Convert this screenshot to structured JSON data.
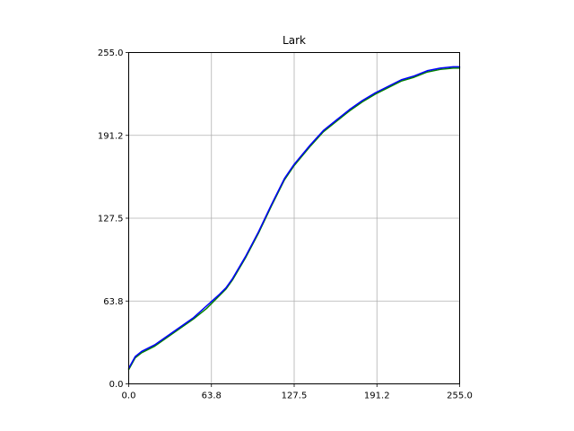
{
  "chart_data": {
    "type": "line",
    "title": "Lark",
    "xlabel": "",
    "ylabel": "",
    "xlim": [
      0,
      255
    ],
    "ylim": [
      0,
      255
    ],
    "x_ticks": [
      0,
      63.75,
      127.5,
      191.25,
      255
    ],
    "x_tick_labels": [
      "0.0",
      "63.8",
      "127.5",
      "191.2",
      "255.0"
    ],
    "y_ticks": [
      0,
      63.75,
      127.5,
      191.25,
      255
    ],
    "y_tick_labels": [
      "0.0",
      "63.8",
      "127.5",
      "191.2",
      "255.0"
    ],
    "grid": true,
    "legend": "none",
    "x": [
      0,
      5,
      10,
      20,
      30,
      40,
      50,
      60,
      70,
      75,
      80,
      90,
      100,
      110,
      120,
      127.5,
      140,
      150,
      160,
      170,
      180,
      190,
      200,
      210,
      220,
      230,
      240,
      250,
      255
    ],
    "series": [
      {
        "color": "#008000",
        "values": [
          11,
          20,
          24,
          29,
          36,
          43,
          50,
          58,
          68,
          73,
          80,
          97,
          116,
          137,
          157,
          168,
          183,
          194,
          202,
          210,
          217,
          223,
          228,
          233,
          236,
          240,
          242,
          243,
          243
        ]
      },
      {
        "color": "#0000ff",
        "values": [
          12,
          21,
          25,
          30,
          37,
          44,
          51,
          60,
          69,
          74,
          81,
          98,
          117,
          138,
          158,
          169,
          184,
          195,
          203,
          211,
          218,
          224,
          229,
          234,
          237,
          241,
          243,
          244,
          244
        ]
      }
    ]
  }
}
